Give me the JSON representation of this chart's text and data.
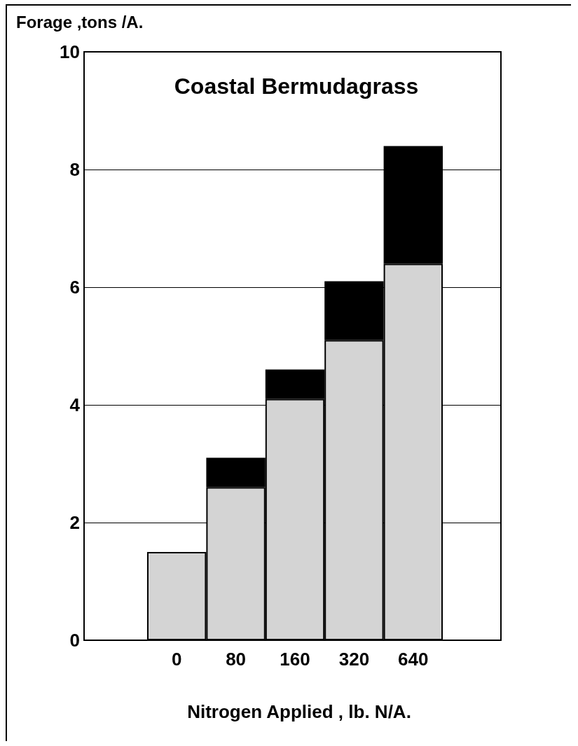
{
  "chart_data": {
    "type": "bar",
    "title": "Coastal Bermudagrass",
    "xlabel": "Nitrogen Applied , lb. N/A.",
    "ylabel": "Forage ,tons /A.",
    "categories": [
      "0",
      "80",
      "160",
      "320",
      "640"
    ],
    "stacked": true,
    "series": [
      {
        "color": "#d4d4d4",
        "values": [
          1.5,
          2.6,
          4.1,
          5.1,
          6.4
        ]
      },
      {
        "color": "#000000",
        "values": [
          null,
          0.5,
          0.5,
          1.0,
          2.0
        ]
      }
    ],
    "ylim": [
      0,
      10
    ],
    "yticks": [
      0,
      2,
      4,
      6,
      8,
      10
    ],
    "grid": "y"
  }
}
